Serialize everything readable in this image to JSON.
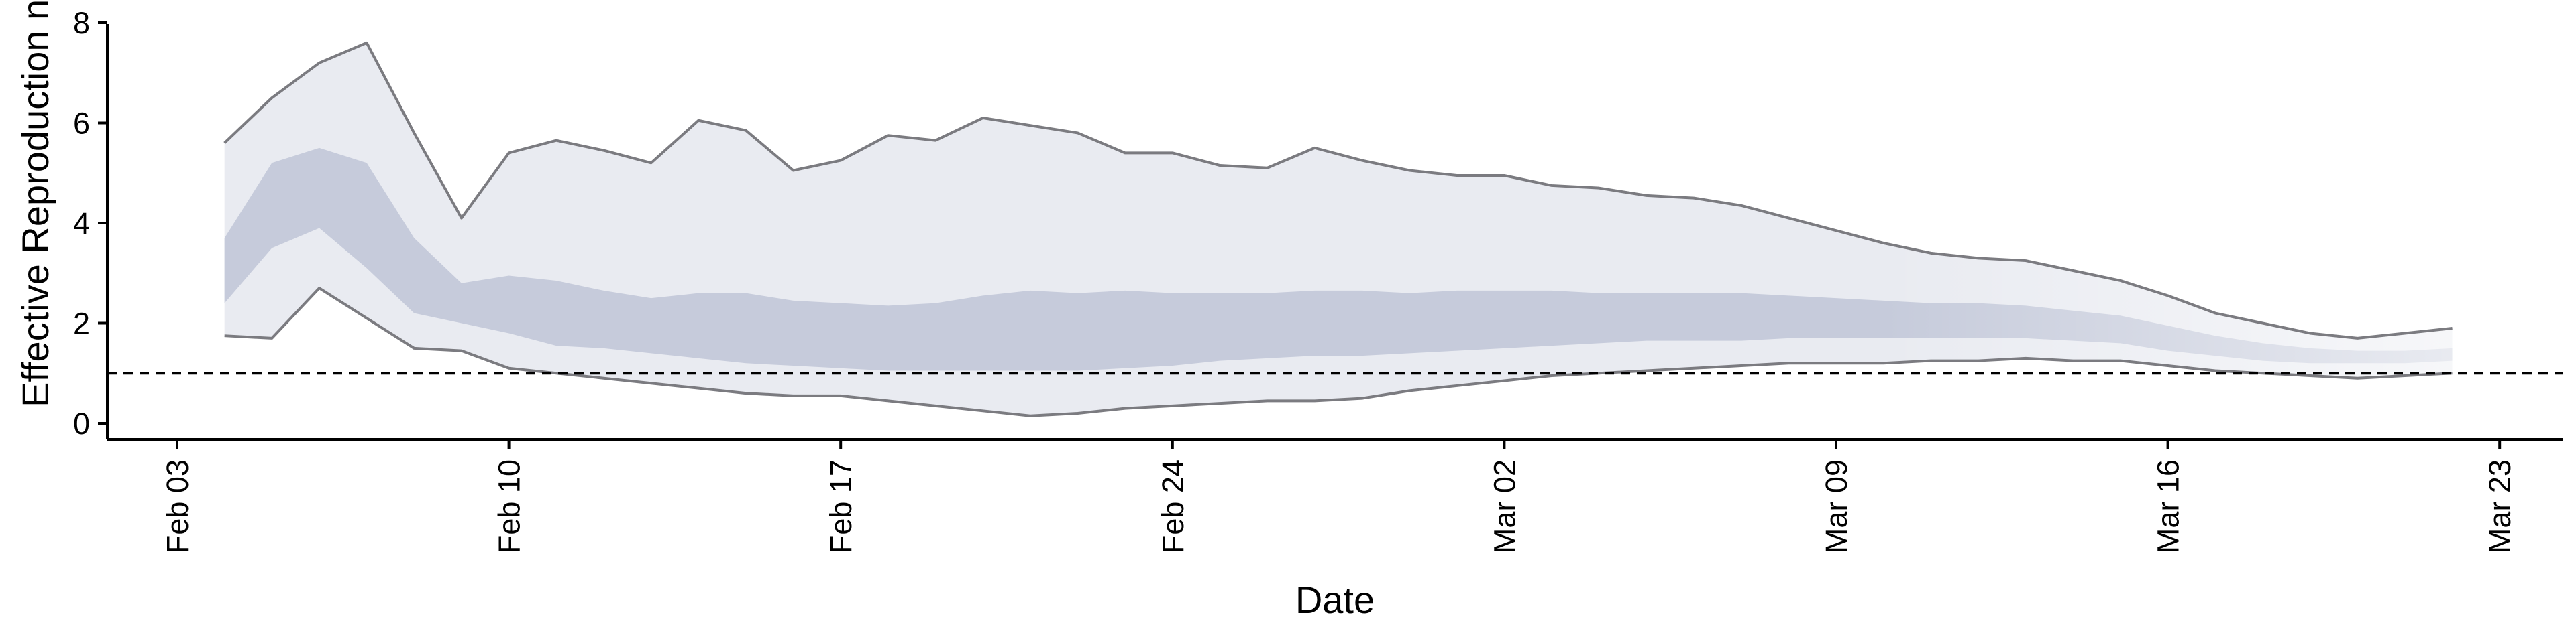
{
  "chart_data": {
    "type": "area",
    "title": "",
    "xlabel": "Date",
    "ylabel": "Effective Reproduction no.",
    "x_ticks": [
      "Feb 03",
      "Feb 10",
      "Feb 17",
      "Feb 24",
      "Mar 02",
      "Mar 09",
      "Mar 16",
      "Mar 23"
    ],
    "y_ticks": [
      0,
      2,
      4,
      6,
      8
    ],
    "xlim": [
      "2020-02-03",
      "2020-03-23"
    ],
    "ylim": [
      0,
      8
    ],
    "reference_line": 1,
    "grid": false,
    "legend": "none",
    "colors": {
      "outer_band": "#e9ebf1",
      "inner_band": "#c6cbdb",
      "bound_line": "#7b7b80",
      "reference_line": "#000000"
    },
    "x": [
      "2020-02-04",
      "2020-02-05",
      "2020-02-06",
      "2020-02-07",
      "2020-02-08",
      "2020-02-09",
      "2020-02-10",
      "2020-02-11",
      "2020-02-12",
      "2020-02-13",
      "2020-02-14",
      "2020-02-15",
      "2020-02-16",
      "2020-02-17",
      "2020-02-18",
      "2020-02-19",
      "2020-02-20",
      "2020-02-21",
      "2020-02-22",
      "2020-02-23",
      "2020-02-24",
      "2020-02-25",
      "2020-02-26",
      "2020-02-27",
      "2020-02-28",
      "2020-02-29",
      "2020-03-01",
      "2020-03-02",
      "2020-03-03",
      "2020-03-04",
      "2020-03-05",
      "2020-03-06",
      "2020-03-07",
      "2020-03-08",
      "2020-03-09",
      "2020-03-10",
      "2020-03-11",
      "2020-03-12",
      "2020-03-13",
      "2020-03-14",
      "2020-03-15",
      "2020-03-16",
      "2020-03-17",
      "2020-03-18",
      "2020-03-19",
      "2020-03-20",
      "2020-03-21",
      "2020-03-22"
    ],
    "series": [
      {
        "values": [
          5.6,
          6.5,
          7.2,
          7.6,
          5.8,
          4.1,
          5.4,
          5.65,
          5.45,
          5.2,
          6.05,
          5.85,
          5.05,
          5.25,
          5.75,
          5.65,
          6.1,
          5.95,
          5.8,
          5.4,
          5.4,
          5.15,
          5.1,
          5.5,
          5.25,
          5.05,
          4.95,
          4.95,
          4.75,
          4.7,
          4.55,
          4.5,
          4.35,
          4.1,
          3.85,
          3.6,
          3.4,
          3.3,
          3.25,
          3.05,
          2.85,
          2.55,
          2.2,
          2.0,
          1.8,
          1.7,
          1.8,
          1.9
        ]
      },
      {
        "values": [
          3.7,
          5.2,
          5.5,
          5.2,
          3.7,
          2.8,
          2.95,
          2.85,
          2.65,
          2.5,
          2.6,
          2.6,
          2.45,
          2.4,
          2.35,
          2.4,
          2.55,
          2.65,
          2.6,
          2.65,
          2.6,
          2.6,
          2.6,
          2.65,
          2.65,
          2.6,
          2.65,
          2.65,
          2.65,
          2.6,
          2.6,
          2.6,
          2.6,
          2.55,
          2.5,
          2.45,
          2.4,
          2.4,
          2.35,
          2.25,
          2.15,
          1.95,
          1.75,
          1.6,
          1.5,
          1.45,
          1.45,
          1.5
        ]
      },
      {
        "values": [
          2.4,
          3.5,
          3.9,
          3.1,
          2.2,
          2.0,
          1.8,
          1.55,
          1.5,
          1.4,
          1.3,
          1.2,
          1.15,
          1.1,
          1.05,
          1.05,
          1.05,
          1.05,
          1.05,
          1.1,
          1.15,
          1.25,
          1.3,
          1.35,
          1.35,
          1.4,
          1.45,
          1.5,
          1.55,
          1.6,
          1.65,
          1.65,
          1.65,
          1.7,
          1.7,
          1.7,
          1.7,
          1.7,
          1.7,
          1.65,
          1.6,
          1.45,
          1.35,
          1.25,
          1.2,
          1.2,
          1.2,
          1.25
        ]
      },
      {
        "values": [
          1.75,
          1.7,
          2.7,
          2.1,
          1.5,
          1.45,
          1.1,
          1.0,
          0.9,
          0.8,
          0.7,
          0.6,
          0.55,
          0.55,
          0.45,
          0.35,
          0.25,
          0.15,
          0.2,
          0.3,
          0.35,
          0.4,
          0.45,
          0.45,
          0.5,
          0.65,
          0.75,
          0.85,
          0.95,
          1.0,
          1.05,
          1.1,
          1.15,
          1.2,
          1.2,
          1.2,
          1.25,
          1.25,
          1.3,
          1.25,
          1.25,
          1.15,
          1.05,
          1.0,
          0.95,
          0.9,
          0.95,
          1.0
        ]
      }
    ]
  }
}
